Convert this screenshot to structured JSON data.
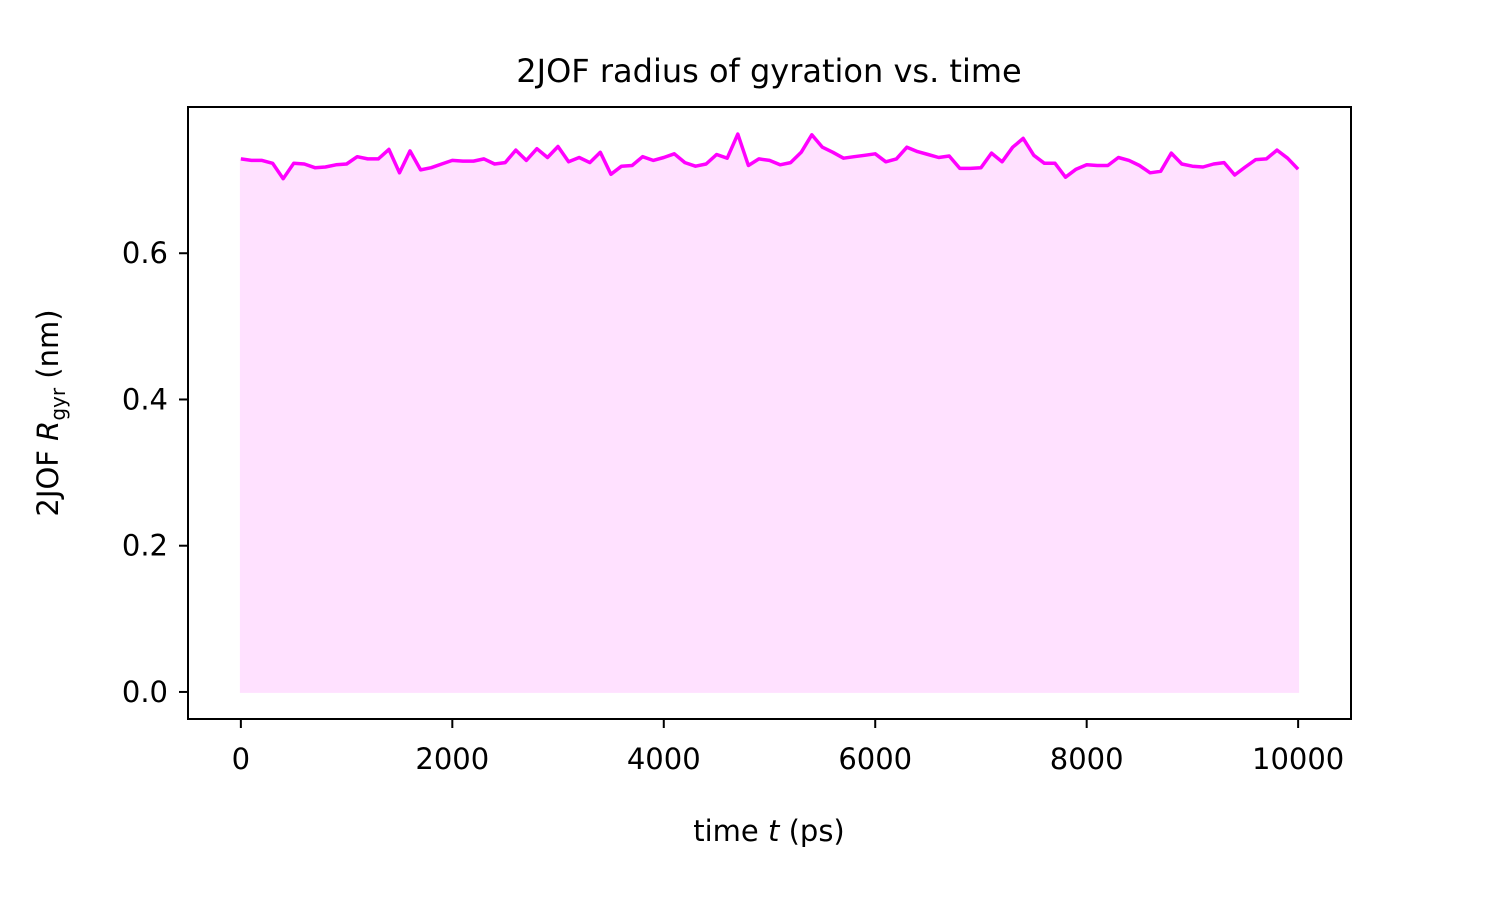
{
  "chart_data": {
    "type": "area",
    "title": "2JOF radius of gyration vs. time",
    "xlabel": {
      "prefix": "time ",
      "var": "t",
      "suffix": " (ps)"
    },
    "ylabel": {
      "prefix": "2JOF ",
      "var": "R",
      "sub": "gyr",
      "suffix": " (nm)"
    },
    "xlim": [
      -500,
      10500
    ],
    "ylim": [
      -0.037,
      0.8
    ],
    "xticks": [
      0,
      2000,
      4000,
      6000,
      8000,
      10000
    ],
    "xtick_labels": [
      "0",
      "2000",
      "4000",
      "6000",
      "8000",
      "10000"
    ],
    "yticks": [
      0.0,
      0.2,
      0.4,
      0.6
    ],
    "ytick_labels": [
      "0.0",
      "0.2",
      "0.4",
      "0.6"
    ],
    "grid": false,
    "line_color": "#ff00ff",
    "fill_color": "#ffe1ff",
    "series": [
      {
        "x": [
          0,
          100,
          200,
          300,
          400,
          500,
          600,
          700,
          800,
          900,
          1000,
          1100,
          1200,
          1300,
          1400,
          1500,
          1600,
          1700,
          1800,
          1900,
          2000,
          2100,
          2200,
          2300,
          2400,
          2500,
          2600,
          2700,
          2800,
          2900,
          3000,
          3100,
          3200,
          3300,
          3400,
          3500,
          3600,
          3700,
          3800,
          3900,
          4000,
          4100,
          4200,
          4300,
          4400,
          4500,
          4600,
          4700,
          4800,
          4900,
          5000,
          5100,
          5200,
          5300,
          5400,
          5500,
          5600,
          5700,
          5800,
          5900,
          6000,
          6100,
          6200,
          6300,
          6400,
          6500,
          6600,
          6700,
          6800,
          6900,
          7000,
          7100,
          7200,
          7300,
          7400,
          7500,
          7600,
          7700,
          7800,
          7900,
          8000,
          8100,
          8200,
          8300,
          8400,
          8500,
          8600,
          8700,
          8800,
          8900,
          9000,
          9100,
          9200,
          9300,
          9400,
          9500,
          9600,
          9700,
          9800,
          9900,
          10000
        ],
        "y": [
          0.729,
          0.727,
          0.727,
          0.723,
          0.702,
          0.723,
          0.722,
          0.717,
          0.718,
          0.721,
          0.722,
          0.732,
          0.729,
          0.729,
          0.742,
          0.71,
          0.74,
          0.714,
          0.717,
          0.722,
          0.727,
          0.726,
          0.726,
          0.729,
          0.722,
          0.724,
          0.741,
          0.727,
          0.743,
          0.731,
          0.746,
          0.725,
          0.731,
          0.724,
          0.738,
          0.708,
          0.719,
          0.72,
          0.732,
          0.727,
          0.731,
          0.736,
          0.724,
          0.719,
          0.722,
          0.735,
          0.73,
          0.763,
          0.72,
          0.729,
          0.727,
          0.721,
          0.724,
          0.738,
          0.762,
          0.745,
          0.738,
          0.73,
          0.732,
          0.734,
          0.736,
          0.725,
          0.729,
          0.745,
          0.739,
          0.735,
          0.731,
          0.733,
          0.716,
          0.716,
          0.717,
          0.737,
          0.725,
          0.745,
          0.757,
          0.734,
          0.723,
          0.723,
          0.704,
          0.715,
          0.721,
          0.72,
          0.72,
          0.731,
          0.727,
          0.72,
          0.71,
          0.712,
          0.737,
          0.722,
          0.719,
          0.718,
          0.722,
          0.724,
          0.707,
          0.718,
          0.728,
          0.729,
          0.741,
          0.73,
          0.715
        ]
      }
    ]
  }
}
